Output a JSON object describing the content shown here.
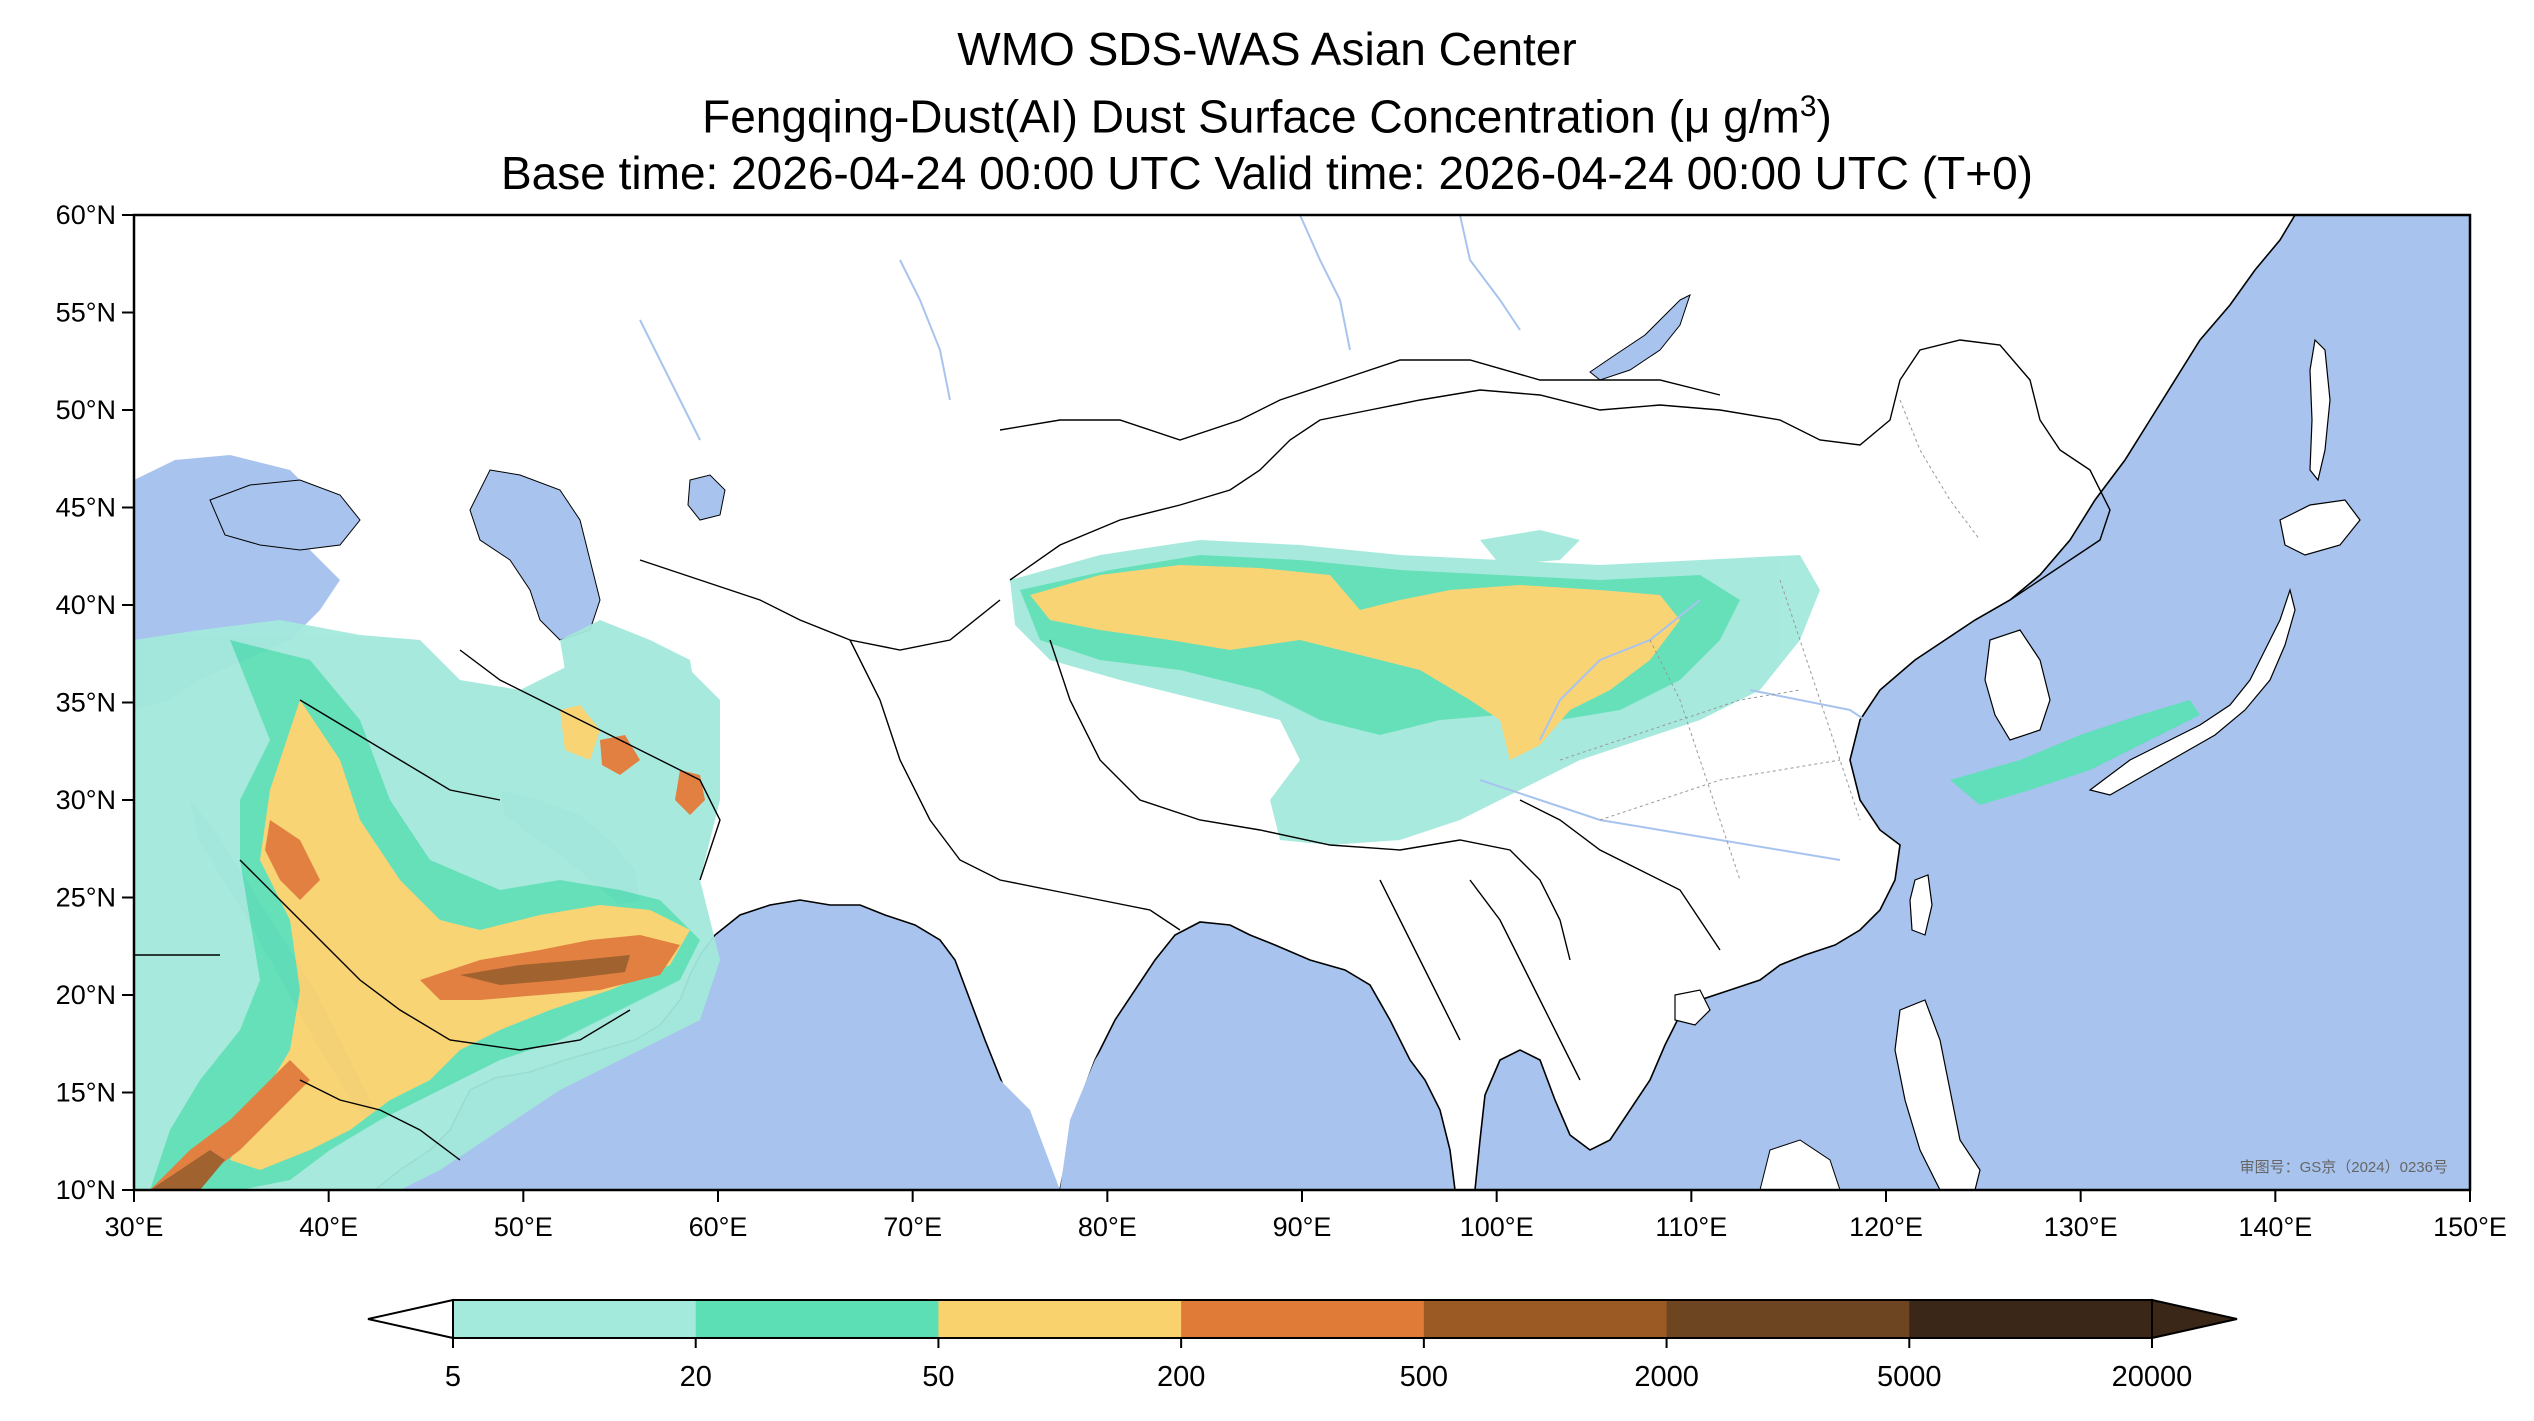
{
  "titles": {
    "line1": "WMO SDS-WAS Asian Center",
    "line2_main": "Fengqing-Dust(AI) Dust Surface Concentration (μ g/m",
    "line2_sup": "3",
    "line2_end": ")",
    "line3": "Base time: 2026-04-24 00:00 UTC Valid time: 2026-04-24 00:00 UTC (T+0)"
  },
  "map": {
    "lon_range": [
      30,
      150
    ],
    "lat_range": [
      10,
      60
    ],
    "lon_ticks": [
      {
        "value": 30,
        "label": "30°E"
      },
      {
        "value": 40,
        "label": "40°E"
      },
      {
        "value": 50,
        "label": "50°E"
      },
      {
        "value": 60,
        "label": "60°E"
      },
      {
        "value": 70,
        "label": "70°E"
      },
      {
        "value": 80,
        "label": "80°E"
      },
      {
        "value": 90,
        "label": "90°E"
      },
      {
        "value": 100,
        "label": "100°E"
      },
      {
        "value": 110,
        "label": "110°E"
      },
      {
        "value": 120,
        "label": "120°E"
      },
      {
        "value": 130,
        "label": "130°E"
      },
      {
        "value": 140,
        "label": "140°E"
      },
      {
        "value": 150,
        "label": "150°E"
      }
    ],
    "lat_ticks": [
      {
        "value": 60,
        "label": "60°N"
      },
      {
        "value": 55,
        "label": "55°N"
      },
      {
        "value": 50,
        "label": "50°N"
      },
      {
        "value": 45,
        "label": "45°N"
      },
      {
        "value": 40,
        "label": "40°N"
      },
      {
        "value": 35,
        "label": "35°N"
      },
      {
        "value": 30,
        "label": "30°N"
      },
      {
        "value": 25,
        "label": "25°N"
      },
      {
        "value": 20,
        "label": "20°N"
      },
      {
        "value": 15,
        "label": "15°N"
      },
      {
        "value": 10,
        "label": "10°N"
      }
    ],
    "approval_note": "审图号：GS京（2024）0236号",
    "colors": {
      "ocean": "#a8c4ee",
      "land": "#ffffff",
      "border": "#000000",
      "river": "#a8c4ee"
    }
  },
  "colorbar": {
    "levels": [
      "5",
      "20",
      "50",
      "200",
      "500",
      "2000",
      "5000",
      "20000"
    ],
    "colors": [
      "#a3e9dc",
      "#5ddfb6",
      "#f9d26e",
      "#e07a37",
      "#9b5a24",
      "#6d4520",
      "#3a2717"
    ],
    "extend": "both"
  }
}
